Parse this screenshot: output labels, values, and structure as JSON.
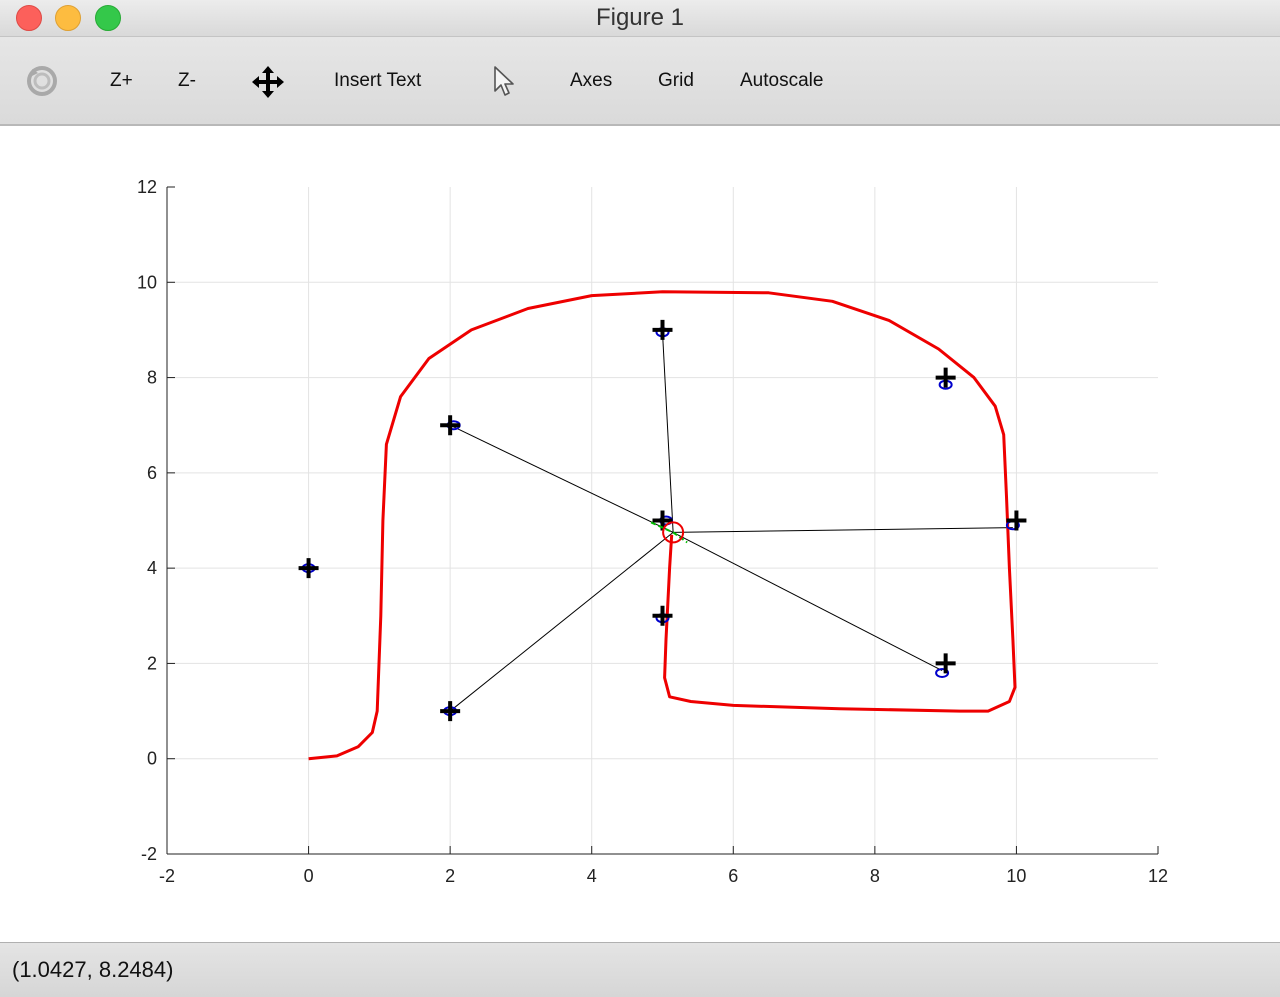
{
  "window": {
    "title": "Figure 1"
  },
  "toolbar": {
    "rotate_icon": "rotate-icon",
    "zoom_in_label": "Z+",
    "zoom_out_label": "Z-",
    "pan_icon": "pan-arrows-icon",
    "insert_text_label": "Insert Text",
    "select_icon": "pointer-arrow-icon",
    "axes_label": "Axes",
    "grid_label": "Grid",
    "autoscale_label": "Autoscale"
  },
  "status": {
    "coordinates": "(1.0427, 8.2484)"
  },
  "chart_data": {
    "type": "line",
    "xlim": [
      -2,
      12
    ],
    "ylim": [
      -2,
      12
    ],
    "xticks": [
      -2,
      0,
      2,
      4,
      6,
      8,
      10,
      12
    ],
    "yticks": [
      -2,
      0,
      2,
      4,
      6,
      8,
      10,
      12
    ],
    "grid": true,
    "colors": {
      "path": "#ee0000",
      "landmark": "#000000",
      "estimate": "#0000cc",
      "robot": "#ee0000",
      "link": "#000000",
      "heading": "#00bb00"
    },
    "path": [
      [
        0,
        0
      ],
      [
        0.4,
        0.06
      ],
      [
        0.7,
        0.25
      ],
      [
        0.9,
        0.55
      ],
      [
        0.97,
        1.0
      ],
      [
        1.02,
        3.0
      ],
      [
        1.05,
        5.0
      ],
      [
        1.1,
        6.6
      ],
      [
        1.3,
        7.6
      ],
      [
        1.7,
        8.4
      ],
      [
        2.3,
        9.0
      ],
      [
        3.1,
        9.45
      ],
      [
        4.0,
        9.72
      ],
      [
        5.0,
        9.8
      ],
      [
        6.5,
        9.78
      ],
      [
        7.4,
        9.6
      ],
      [
        8.2,
        9.2
      ],
      [
        8.9,
        8.6
      ],
      [
        9.4,
        8.0
      ],
      [
        9.7,
        7.4
      ],
      [
        9.82,
        6.8
      ],
      [
        9.86,
        5.5
      ],
      [
        9.9,
        4.0
      ],
      [
        9.95,
        2.5
      ],
      [
        9.98,
        1.5
      ],
      [
        9.9,
        1.2
      ],
      [
        9.6,
        1.0
      ],
      [
        9.2,
        1.0
      ],
      [
        7.5,
        1.05
      ],
      [
        6.0,
        1.12
      ],
      [
        5.4,
        1.2
      ],
      [
        5.1,
        1.3
      ],
      [
        5.03,
        1.7
      ],
      [
        5.05,
        2.5
      ],
      [
        5.1,
        4.0
      ],
      [
        5.13,
        4.7
      ]
    ],
    "landmarks": [
      [
        0,
        4
      ],
      [
        2,
        7
      ],
      [
        2,
        1
      ],
      [
        5,
        9
      ],
      [
        5,
        5
      ],
      [
        5,
        3
      ],
      [
        9,
        8
      ],
      [
        10,
        5
      ],
      [
        9,
        2
      ]
    ],
    "estimates": [
      [
        0,
        4
      ],
      [
        2.05,
        7.0
      ],
      [
        2.0,
        1.0
      ],
      [
        5.0,
        8.95
      ],
      [
        5.05,
        5.0
      ],
      [
        5.0,
        2.95
      ],
      [
        9.0,
        7.85
      ],
      [
        9.95,
        4.9
      ],
      [
        8.95,
        1.8
      ]
    ],
    "robot": {
      "x": 5.15,
      "y": 4.75
    },
    "observations": [
      [
        2,
        7
      ],
      [
        5.0,
        8.95
      ],
      [
        9.95,
        4.85
      ],
      [
        8.95,
        1.85
      ],
      [
        2,
        1
      ]
    ]
  }
}
